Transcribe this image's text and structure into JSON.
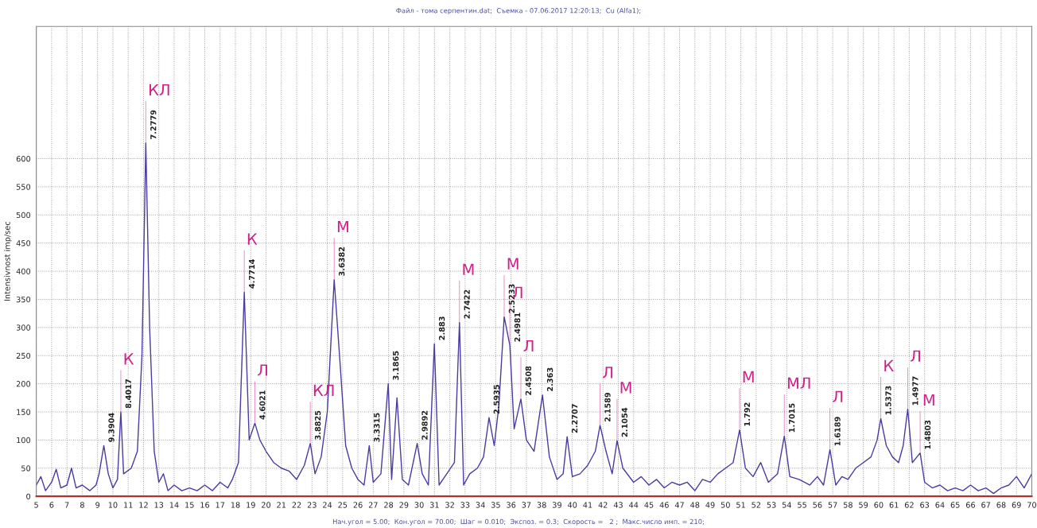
{
  "chart_data": {
    "type": "line",
    "title": "Файл - тома серпентин.dat;  Съемка - 07.06.2017 12:20:13;  Cu (Alfa1);",
    "ylabel": "Intensivnost imp/sec",
    "x": [
      5.0,
      5.3,
      5.6,
      6.0,
      6.3,
      6.6,
      7.0,
      7.3,
      7.6,
      8.0,
      8.5,
      8.9,
      9.1,
      9.41,
      9.7,
      10.0,
      10.3,
      10.52,
      10.7,
      11.2,
      11.6,
      11.9,
      12.15,
      12.4,
      12.7,
      13.0,
      13.3,
      13.6,
      14.0,
      14.5,
      15.0,
      15.5,
      16.0,
      16.5,
      17.0,
      17.5,
      17.8,
      18.2,
      18.58,
      18.9,
      19.27,
      19.6,
      20.0,
      20.5,
      21.0,
      21.5,
      22.0,
      22.5,
      22.89,
      23.2,
      23.6,
      24.0,
      24.45,
      24.8,
      25.2,
      25.6,
      26.0,
      26.4,
      26.74,
      27.0,
      27.5,
      27.98,
      28.2,
      28.55,
      28.9,
      29.3,
      29.87,
      30.2,
      30.6,
      30.99,
      31.3,
      31.8,
      32.3,
      32.63,
      32.9,
      33.3,
      33.8,
      34.2,
      34.56,
      34.9,
      35.2,
      35.55,
      35.92,
      36.2,
      36.64,
      37.0,
      37.5,
      38.05,
      38.5,
      39.0,
      39.4,
      39.66,
      40.0,
      40.5,
      41.0,
      41.5,
      41.81,
      42.2,
      42.6,
      42.92,
      43.3,
      44.0,
      44.5,
      45.0,
      45.5,
      46.0,
      46.5,
      47.0,
      47.5,
      48.0,
      48.5,
      49.0,
      49.5,
      50.0,
      50.5,
      50.92,
      51.3,
      51.8,
      52.3,
      52.8,
      53.4,
      53.84,
      54.2,
      54.8,
      55.5,
      56.0,
      56.4,
      56.82,
      57.2,
      57.6,
      58.0,
      58.5,
      59.0,
      59.5,
      59.9,
      60.14,
      60.5,
      60.9,
      61.3,
      61.6,
      61.9,
      62.2,
      62.71,
      63.0,
      63.5,
      64.0,
      64.5,
      65.0,
      65.5,
      66.0,
      66.5,
      67.0,
      67.5,
      68.0,
      68.5,
      69.0,
      69.5,
      70.0
    ],
    "series": [
      {
        "color": "#4b3aa0",
        "values": [
          20,
          35,
          10,
          25,
          48,
          15,
          20,
          50,
          15,
          20,
          10,
          20,
          40,
          90,
          40,
          15,
          30,
          150,
          40,
          50,
          80,
          250,
          628,
          300,
          80,
          25,
          40,
          10,
          20,
          10,
          15,
          10,
          20,
          10,
          25,
          15,
          30,
          60,
          363,
          100,
          130,
          100,
          80,
          60,
          50,
          45,
          30,
          55,
          94,
          40,
          70,
          150,
          385,
          250,
          90,
          50,
          30,
          20,
          90,
          25,
          40,
          200,
          30,
          175,
          30,
          20,
          94,
          40,
          20,
          271,
          20,
          40,
          60,
          309,
          20,
          40,
          50,
          70,
          140,
          90,
          160,
          319,
          268,
          120,
          173,
          100,
          80,
          180,
          70,
          30,
          40,
          106,
          35,
          40,
          55,
          80,
          126,
          80,
          40,
          99,
          50,
          25,
          35,
          20,
          30,
          15,
          25,
          20,
          25,
          10,
          30,
          25,
          40,
          50,
          60,
          118,
          50,
          35,
          60,
          25,
          40,
          107,
          35,
          30,
          20,
          35,
          20,
          83,
          20,
          35,
          30,
          50,
          60,
          70,
          100,
          138,
          90,
          70,
          60,
          90,
          155,
          60,
          77,
          25,
          15,
          20,
          10,
          15,
          10,
          20,
          10,
          15,
          5,
          15,
          20,
          35,
          15,
          40
        ]
      }
    ],
    "xlim": [
      5,
      70
    ],
    "xticks": [
      5,
      6,
      7,
      8,
      9,
      10,
      11,
      12,
      13,
      14,
      15,
      16,
      17,
      18,
      19,
      20,
      21,
      22,
      23,
      24,
      25,
      26,
      27,
      28,
      29,
      30,
      31,
      32,
      33,
      34,
      35,
      36,
      37,
      38,
      39,
      40,
      41,
      42,
      43,
      44,
      45,
      46,
      47,
      48,
      49,
      50,
      51,
      52,
      53,
      54,
      55,
      56,
      57,
      58,
      59,
      60,
      61,
      62,
      63,
      64,
      65,
      66,
      67,
      68,
      69,
      70
    ],
    "ylim": [
      0,
      835
    ],
    "yticks": [
      0,
      50,
      100,
      150,
      200,
      250,
      300,
      350,
      400,
      450,
      500,
      550,
      600
    ],
    "grid": true,
    "annotations": [
      {
        "text": "9.3904",
        "x": 9.41,
        "y": 90
      },
      {
        "text": "8.4017",
        "x": 10.52,
        "y": 150
      },
      {
        "text": "7.2779",
        "x": 12.15,
        "y": 628
      },
      {
        "text": "4.7714",
        "x": 18.58,
        "y": 363
      },
      {
        "text": "4.6021",
        "x": 19.27,
        "y": 130
      },
      {
        "text": "3.8825",
        "x": 22.89,
        "y": 94
      },
      {
        "text": "3.6382",
        "x": 24.45,
        "y": 385
      },
      {
        "text": "3.3315",
        "x": 26.74,
        "y": 90
      },
      {
        "text": "3.1865",
        "x": 27.98,
        "y": 200
      },
      {
        "text": "2.9892",
        "x": 29.87,
        "y": 94
      },
      {
        "text": "2.883",
        "x": 30.99,
        "y": 271
      },
      {
        "text": "2.7422",
        "x": 32.63,
        "y": 309
      },
      {
        "text": "2.5935",
        "x": 34.56,
        "y": 140
      },
      {
        "text": "2.5233",
        "x": 35.55,
        "y": 319
      },
      {
        "text": "2.4981",
        "x": 35.92,
        "y": 268
      },
      {
        "text": "2.4508",
        "x": 36.64,
        "y": 173
      },
      {
        "text": "2.363",
        "x": 38.05,
        "y": 180
      },
      {
        "text": "2.2707",
        "x": 39.66,
        "y": 106
      },
      {
        "text": "2.1589",
        "x": 41.81,
        "y": 126
      },
      {
        "text": "2.1054",
        "x": 42.92,
        "y": 99
      },
      {
        "text": "1.792",
        "x": 50.92,
        "y": 118
      },
      {
        "text": "1.7015",
        "x": 53.84,
        "y": 107
      },
      {
        "text": "1.6189",
        "x": 56.82,
        "y": 83
      },
      {
        "text": "1.5373",
        "x": 60.14,
        "y": 138
      },
      {
        "text": "1.4977",
        "x": 61.9,
        "y": 155
      },
      {
        "text": "1.4803",
        "x": 62.71,
        "y": 77
      },
      {
        "text": "К",
        "x": 10.52,
        "y": 150
      },
      {
        "text": "КЛ",
        "x": 12.15,
        "y": 628
      },
      {
        "text": "К",
        "x": 18.58,
        "y": 363
      },
      {
        "text": "Л",
        "x": 19.27,
        "y": 130
      },
      {
        "text": "КЛ",
        "x": 22.89,
        "y": 94
      },
      {
        "text": "М",
        "x": 24.45,
        "y": 385
      },
      {
        "text": "М",
        "x": 32.63,
        "y": 309
      },
      {
        "text": "М",
        "x": 35.55,
        "y": 319
      },
      {
        "text": "Л",
        "x": 35.92,
        "y": 268
      },
      {
        "text": "Л",
        "x": 36.64,
        "y": 173
      },
      {
        "text": "Л",
        "x": 41.81,
        "y": 126
      },
      {
        "text": "М",
        "x": 42.92,
        "y": 99
      },
      {
        "text": "М",
        "x": 50.92,
        "y": 118
      },
      {
        "text": "МЛ",
        "x": 53.84,
        "y": 107
      },
      {
        "text": "Л",
        "x": 56.82,
        "y": 83
      },
      {
        "text": "К",
        "x": 60.14,
        "y": 138
      },
      {
        "text": "Л",
        "x": 61.9,
        "y": 155
      },
      {
        "text": "М",
        "x": 62.71,
        "y": 77
      },
      "Нач.угол = 5.00;  Кон.угол = 70.00;  Шаг = 0.010;  Экспоз. = 0.3;  Скорость =   2 ;  Макс.число имп. = 210;"
    ]
  }
}
